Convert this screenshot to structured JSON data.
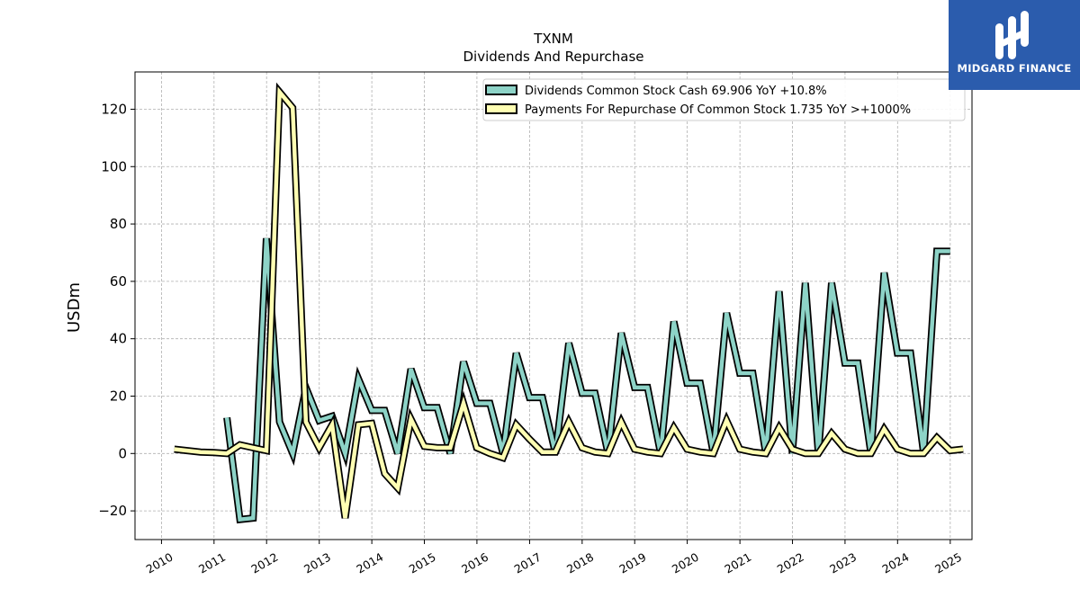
{
  "header": {
    "ticker": "TXNM",
    "title": "Dividends And Repurchase"
  },
  "logo": {
    "text": "MIDGARD FINANCE",
    "bg_color": "#2b5cad"
  },
  "chart_data": {
    "type": "line",
    "ylabel": "USDm",
    "xlabel": "",
    "xlim": [
      "2009-07-01",
      "2025-06-01"
    ],
    "ylim": [
      -30,
      133
    ],
    "yticks": [
      -20,
      0,
      20,
      40,
      60,
      80,
      100,
      120
    ],
    "xticks": [
      "2010",
      "2011",
      "2012",
      "2013",
      "2014",
      "2015",
      "2016",
      "2017",
      "2018",
      "2019",
      "2020",
      "2021",
      "2022",
      "2023",
      "2024",
      "2025"
    ],
    "grid": true,
    "legend_position": "top-right",
    "series": [
      {
        "name": "Dividends Common Stock Cash",
        "legend_suffix": "69.906 YoY +10.8%",
        "color": "#8dd3c7",
        "points": [
          [
            "2011-03-31",
            12.5
          ],
          [
            "2011-06-30",
            -23.0
          ],
          [
            "2011-09-30",
            -22.5
          ],
          [
            "2011-12-31",
            75.0
          ],
          [
            "2012-03-31",
            11.0
          ],
          [
            "2012-06-30",
            0.0
          ],
          [
            "2012-09-30",
            23.0
          ],
          [
            "2012-12-31",
            11.5
          ],
          [
            "2013-03-31",
            13.0
          ],
          [
            "2013-06-30",
            0.0
          ],
          [
            "2013-09-30",
            26.0
          ],
          [
            "2013-12-31",
            15.0
          ],
          [
            "2014-03-31",
            15.0
          ],
          [
            "2014-06-30",
            0.0
          ],
          [
            "2014-09-30",
            29.5
          ],
          [
            "2014-12-31",
            16.0
          ],
          [
            "2015-03-31",
            16.0
          ],
          [
            "2015-06-30",
            0.0
          ],
          [
            "2015-09-30",
            32.0
          ],
          [
            "2015-12-31",
            17.5
          ],
          [
            "2016-03-31",
            17.5
          ],
          [
            "2016-06-30",
            0.0
          ],
          [
            "2016-09-30",
            35.0
          ],
          [
            "2016-12-31",
            19.5
          ],
          [
            "2017-03-31",
            19.5
          ],
          [
            "2017-06-30",
            0.0
          ],
          [
            "2017-09-30",
            38.5
          ],
          [
            "2017-12-31",
            21.0
          ],
          [
            "2018-03-31",
            21.0
          ],
          [
            "2018-06-30",
            0.0
          ],
          [
            "2018-09-30",
            42.0
          ],
          [
            "2018-12-31",
            23.0
          ],
          [
            "2019-03-31",
            23.0
          ],
          [
            "2019-06-30",
            0.0
          ],
          [
            "2019-09-30",
            46.0
          ],
          [
            "2019-12-31",
            24.5
          ],
          [
            "2020-03-31",
            24.5
          ],
          [
            "2020-06-30",
            0.0
          ],
          [
            "2020-09-30",
            49.0
          ],
          [
            "2020-12-31",
            28.0
          ],
          [
            "2021-03-31",
            28.0
          ],
          [
            "2021-06-30",
            0.0
          ],
          [
            "2021-09-30",
            56.5
          ],
          [
            "2021-12-31",
            0.0
          ],
          [
            "2022-03-31",
            59.5
          ],
          [
            "2022-06-30",
            0.0
          ],
          [
            "2022-09-30",
            59.5
          ],
          [
            "2022-12-31",
            31.5
          ],
          [
            "2023-03-31",
            31.5
          ],
          [
            "2023-06-30",
            0.0
          ],
          [
            "2023-09-30",
            63.0
          ],
          [
            "2023-12-31",
            35.0
          ],
          [
            "2024-03-31",
            35.0
          ],
          [
            "2024-06-30",
            0.0
          ],
          [
            "2024-09-30",
            70.5
          ],
          [
            "2024-12-31",
            70.5
          ]
        ]
      },
      {
        "name": "Payments For Repurchase Of Common Stock",
        "legend_suffix": "1.735 YoY >+1000%",
        "color": "#ffffb3",
        "points": [
          [
            "2010-03-31",
            1.5
          ],
          [
            "2010-06-30",
            1.0
          ],
          [
            "2010-09-30",
            0.5
          ],
          [
            "2010-12-31",
            0.3
          ],
          [
            "2011-03-31",
            0.0
          ],
          [
            "2011-06-30",
            3.0
          ],
          [
            "2011-09-30",
            2.0
          ],
          [
            "2011-12-31",
            1.0
          ],
          [
            "2012-03-31",
            126.0
          ],
          [
            "2012-06-30",
            120.5
          ],
          [
            "2012-09-30",
            11.0
          ],
          [
            "2012-12-31",
            2.0
          ],
          [
            "2013-03-31",
            10.0
          ],
          [
            "2013-06-30",
            -22.5
          ],
          [
            "2013-09-30",
            10.0
          ],
          [
            "2013-12-31",
            10.5
          ],
          [
            "2014-03-31",
            -7.0
          ],
          [
            "2014-06-30",
            -12.0
          ],
          [
            "2014-09-30",
            12.0
          ],
          [
            "2014-12-31",
            2.5
          ],
          [
            "2015-03-31",
            2.0
          ],
          [
            "2015-06-30",
            2.0
          ],
          [
            "2015-09-30",
            17.5
          ],
          [
            "2015-12-31",
            2.0
          ],
          [
            "2016-03-31",
            0.0
          ],
          [
            "2016-06-30",
            -1.5
          ],
          [
            "2016-09-30",
            10.0
          ],
          [
            "2016-12-31",
            5.0
          ],
          [
            "2017-03-31",
            0.5
          ],
          [
            "2017-06-30",
            0.5
          ],
          [
            "2017-09-30",
            11.0
          ],
          [
            "2017-12-31",
            2.0
          ],
          [
            "2018-03-31",
            0.5
          ],
          [
            "2018-06-30",
            0.0
          ],
          [
            "2018-09-30",
            11.0
          ],
          [
            "2018-12-31",
            1.5
          ],
          [
            "2019-03-31",
            0.5
          ],
          [
            "2019-06-30",
            0.0
          ],
          [
            "2019-09-30",
            9.0
          ],
          [
            "2019-12-31",
            1.5
          ],
          [
            "2020-03-31",
            0.5
          ],
          [
            "2020-06-30",
            0.0
          ],
          [
            "2020-09-30",
            11.5
          ],
          [
            "2020-12-31",
            1.5
          ],
          [
            "2021-03-31",
            0.5
          ],
          [
            "2021-06-30",
            0.0
          ],
          [
            "2021-09-30",
            9.0
          ],
          [
            "2021-12-31",
            1.5
          ],
          [
            "2022-03-31",
            0.0
          ],
          [
            "2022-06-30",
            0.0
          ],
          [
            "2022-09-30",
            7.0
          ],
          [
            "2022-12-31",
            1.5
          ],
          [
            "2023-03-31",
            0.0
          ],
          [
            "2023-06-30",
            0.0
          ],
          [
            "2023-09-30",
            8.5
          ],
          [
            "2023-12-31",
            1.5
          ],
          [
            "2024-03-31",
            0.0
          ],
          [
            "2024-06-30",
            0.0
          ],
          [
            "2024-09-30",
            5.5
          ],
          [
            "2024-12-31",
            1.0
          ],
          [
            "2025-03-31",
            1.5
          ]
        ]
      }
    ]
  }
}
